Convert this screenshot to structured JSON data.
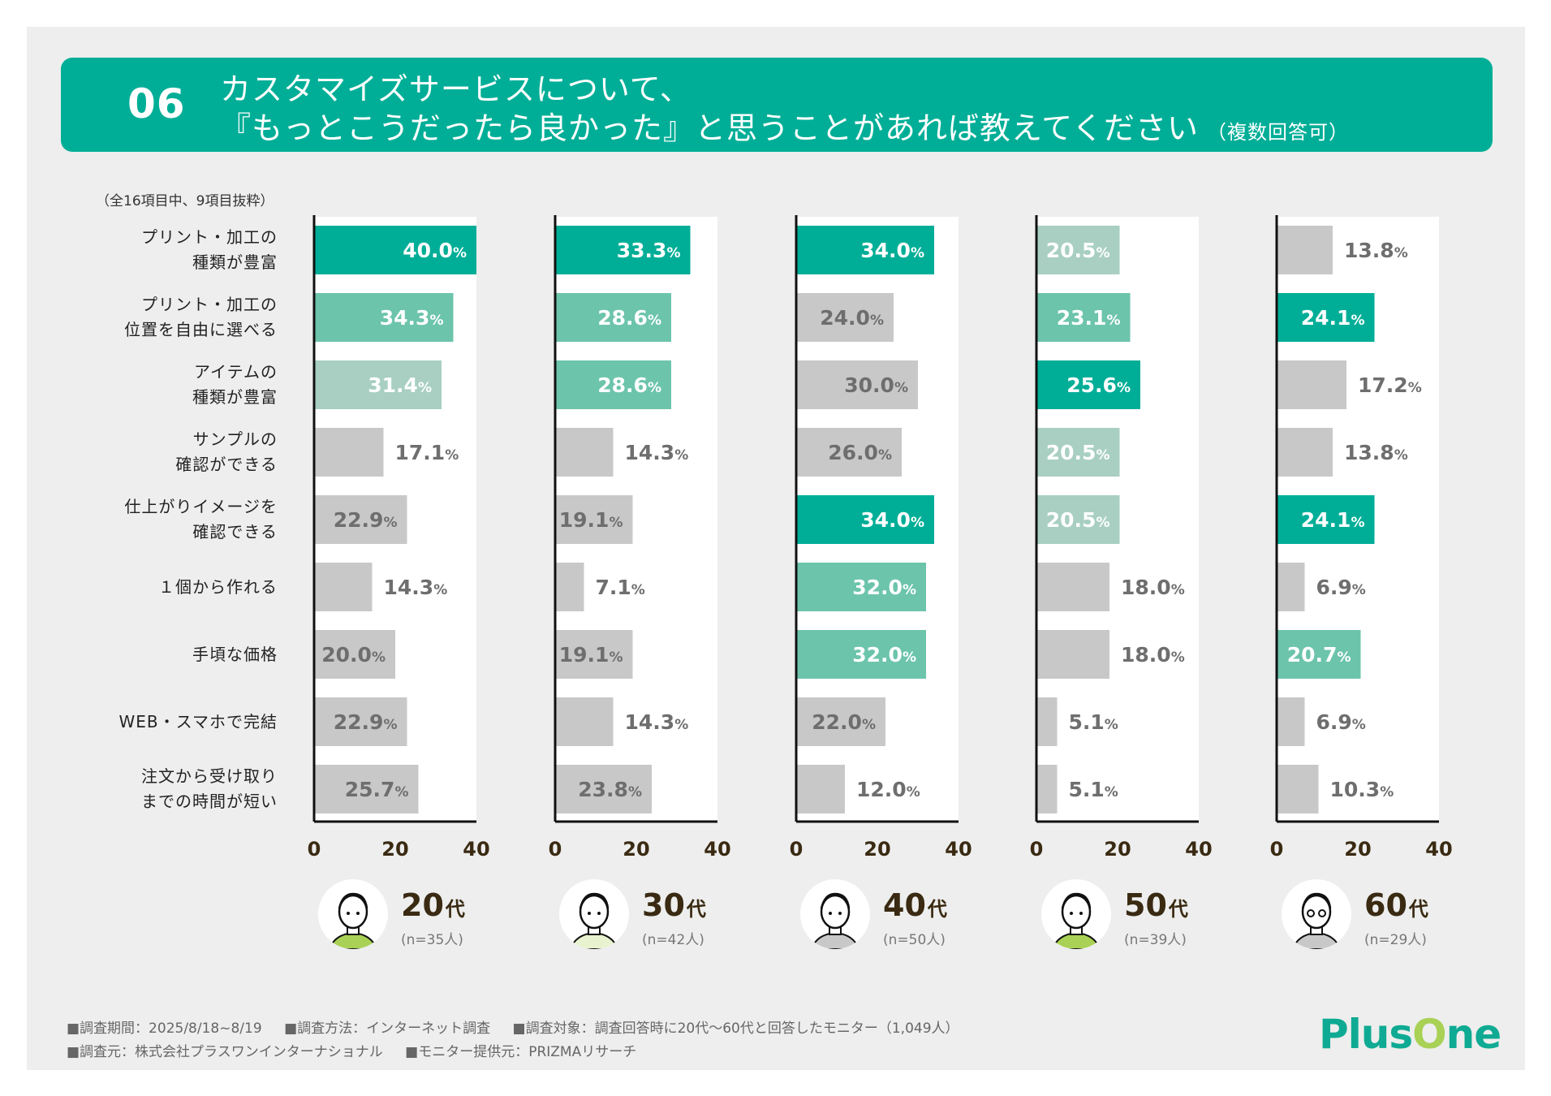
{
  "header": {
    "number": "06",
    "title_line1": "カスタマイズサービスについて、",
    "title_line2": "『もっとこうだったら良かった』と思うことがあれば教えてください",
    "title_suffix": "（複数回答可）"
  },
  "note": "（全16項目中、9項目抜粋）",
  "colors": {
    "rank1": "#00ae97",
    "rank2": "#6cc4ab",
    "rank3": "#a8cfc2",
    "other": "#c8c8c8",
    "header_bg": "#00ae97",
    "panel_bg": "#edeeed"
  },
  "chart_data": {
    "type": "bar",
    "orientation": "horizontal",
    "title": "カスタマイズサービスについて、『もっとこうだったら良かった』と思うことがあれば教えてください（複数回答可）",
    "xlabel": "",
    "ylabel": "",
    "xlim": [
      0,
      40
    ],
    "xticks": [
      "0",
      "20",
      "40"
    ],
    "unit": "%",
    "grid": false,
    "categories": [
      "プリント・加工の\n種類が豊富",
      "プリント・加工の\n位置を自由に選べる",
      "アイテムの\n種類が豊富",
      "サンプルの\n確認ができる",
      "仕上がりイメージを\n確認できる",
      "１個から作れる",
      "手頃な価格",
      "WEB・スマホで完結",
      "注文から受け取り\nまでの時間が短い"
    ],
    "series": [
      {
        "name": "20代",
        "n": "(n=35人)",
        "values": [
          40.0,
          34.3,
          31.4,
          17.1,
          22.9,
          14.3,
          20.0,
          22.9,
          25.7
        ],
        "rank": [
          1,
          2,
          3,
          0,
          0,
          0,
          0,
          0,
          0
        ]
      },
      {
        "name": "30代",
        "n": "(n=42人)",
        "values": [
          33.3,
          28.6,
          28.6,
          14.3,
          19.1,
          7.1,
          19.1,
          14.3,
          23.8
        ],
        "rank": [
          1,
          2,
          2,
          0,
          0,
          0,
          0,
          0,
          0
        ]
      },
      {
        "name": "40代",
        "n": "(n=50人)",
        "values": [
          34.0,
          24.0,
          30.0,
          26.0,
          34.0,
          32.0,
          32.0,
          22.0,
          12.0
        ],
        "rank": [
          1,
          0,
          0,
          0,
          1,
          2,
          2,
          0,
          0
        ]
      },
      {
        "name": "50代",
        "n": "(n=39人)",
        "values": [
          20.5,
          23.1,
          25.6,
          20.5,
          20.5,
          18.0,
          18.0,
          5.1,
          5.1
        ],
        "rank": [
          3,
          2,
          1,
          3,
          3,
          0,
          0,
          0,
          0
        ]
      },
      {
        "name": "60代",
        "n": "(n=29人)",
        "values": [
          13.8,
          24.1,
          17.2,
          13.8,
          24.1,
          6.9,
          20.7,
          6.9,
          10.3
        ],
        "rank": [
          0,
          1,
          0,
          0,
          1,
          0,
          2,
          0,
          0
        ]
      }
    ]
  },
  "legend": [
    {
      "age": "20",
      "suffix": "代",
      "n": "(n=35人)",
      "icon": "young-man-icon"
    },
    {
      "age": "30",
      "suffix": "代",
      "n": "(n=42人)",
      "icon": "woman-icon"
    },
    {
      "age": "40",
      "suffix": "代",
      "n": "(n=50人)",
      "icon": "man-collar-icon"
    },
    {
      "age": "50",
      "suffix": "代",
      "n": "(n=39人)",
      "icon": "woman-ponytail-icon"
    },
    {
      "age": "60",
      "suffix": "代",
      "n": "(n=29人)",
      "icon": "older-man-glasses-icon"
    }
  ],
  "footer": {
    "line1": [
      "■調査期間：2025/8/18~8/19",
      "■調査方法：インターネット調査",
      "■調査対象：調査回答時に20代～60代と回答したモニター（1,049人）"
    ],
    "line2": [
      "■調査元：株式会社プラスワンインターナショナル",
      "■モニター提供元：PRIZMAリサーチ"
    ]
  },
  "logo": {
    "text_a": "Plus",
    "text_o": "O",
    "text_b": "ne"
  }
}
